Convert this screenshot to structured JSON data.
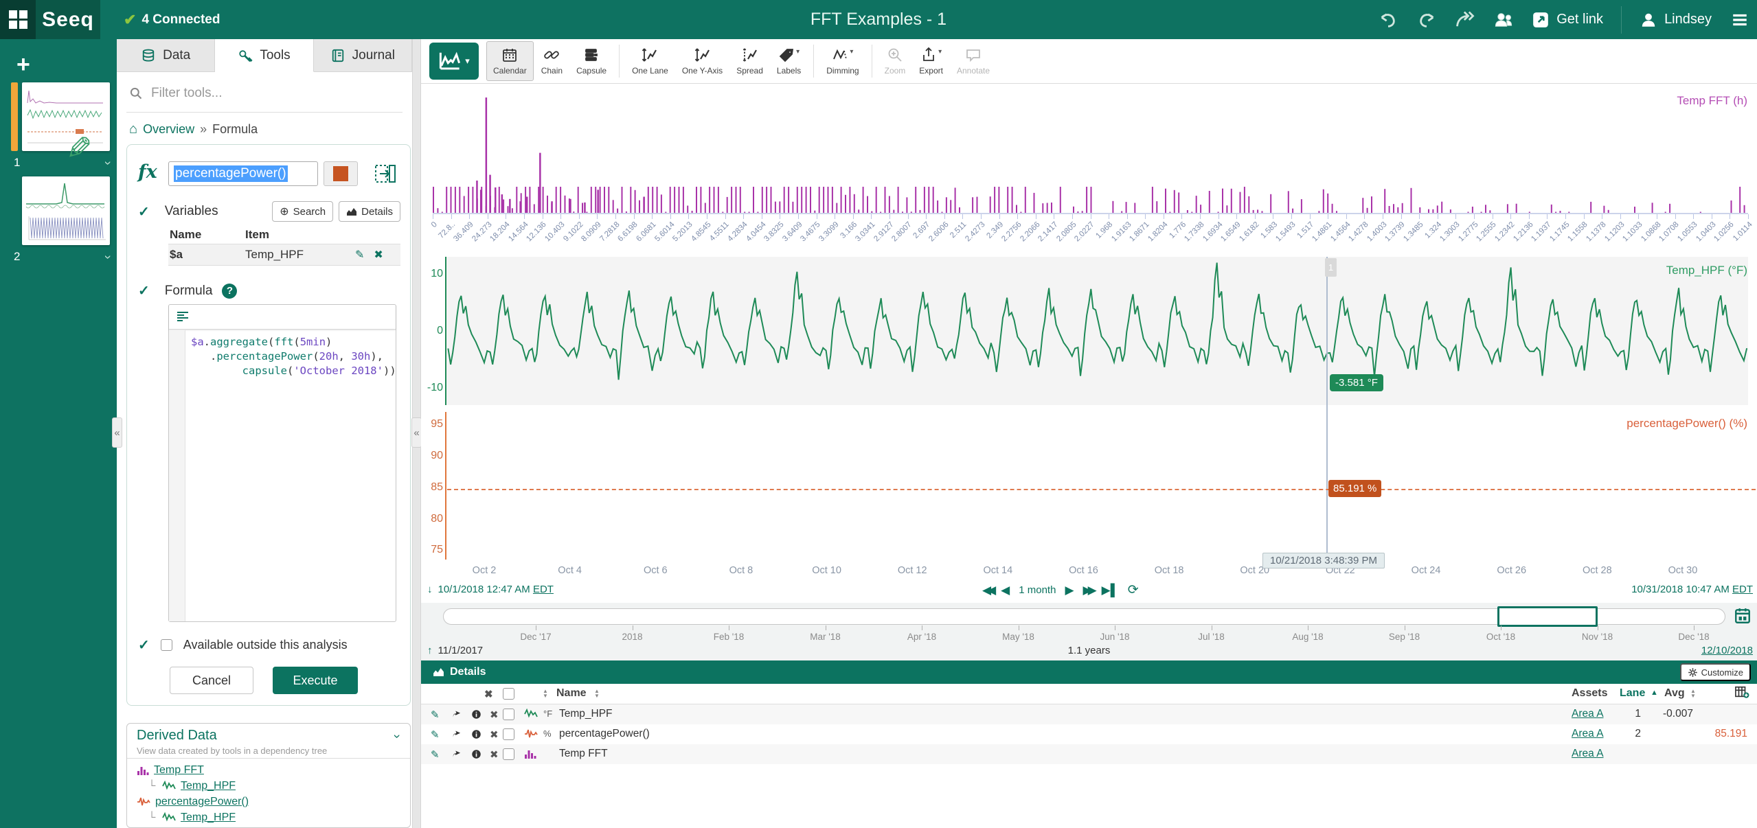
{
  "top_bar": {
    "logo": "Seeq",
    "connected": "4 Connected",
    "title": "FFT Examples - 1",
    "get_link": "Get link",
    "user_name": "Lindsey"
  },
  "worksheets": {
    "add_label": "+",
    "items": [
      {
        "label": "1"
      },
      {
        "label": "2"
      }
    ]
  },
  "panel_tabs": [
    {
      "label": "Data",
      "icon": "database-icon",
      "active": false
    },
    {
      "label": "Tools",
      "icon": "wrench-icon",
      "active": true
    },
    {
      "label": "Journal",
      "icon": "journal-icon",
      "active": false
    }
  ],
  "tools_panel": {
    "filter_placeholder": "Filter tools...",
    "breadcrumb": {
      "root": "Overview",
      "separator": "»",
      "current": "Formula"
    },
    "formula_tool": {
      "name_value": "percentagePower()",
      "variables_label": "Variables",
      "search_button": "Search",
      "details_button": "Details",
      "columns": [
        "Name",
        "Item"
      ],
      "variables": [
        {
          "name": "$a",
          "item": "Temp_HPF"
        }
      ],
      "formula_label": "Formula",
      "code_lines": [
        [
          [
            "$a",
            "v"
          ],
          [
            ".",
            "p"
          ],
          [
            "aggregate",
            "f"
          ],
          [
            "(",
            "p"
          ],
          [
            "fft",
            "f"
          ],
          [
            "(",
            "p"
          ],
          [
            "5min",
            "v"
          ],
          [
            ")",
            "p"
          ]
        ],
        [
          [
            "   .",
            "p"
          ],
          [
            "percentagePower",
            "f"
          ],
          [
            "(",
            "p"
          ],
          [
            "20h",
            "v"
          ],
          [
            ", ",
            "p"
          ],
          [
            "30h",
            "v"
          ],
          [
            "),",
            "p"
          ]
        ],
        [
          [
            "        ",
            "p"
          ],
          [
            "capsule",
            "f"
          ],
          [
            "(",
            "p"
          ],
          [
            "'October 2018'",
            "s"
          ],
          [
            "))",
            "p"
          ]
        ]
      ],
      "available_label": "Available outside this analysis",
      "cancel_button": "Cancel",
      "execute_button": "Execute"
    },
    "derived_data": {
      "title": "Derived Data",
      "subtitle": "View data created by tools in a dependency tree",
      "tree": [
        {
          "icon": "bars-purple-icon",
          "label": "Temp FFT",
          "depth": 0
        },
        {
          "icon": "wave-green-icon",
          "label": "Temp_HPF",
          "depth": 1
        },
        {
          "icon": "wave-orange-icon",
          "label": "percentagePower()",
          "depth": 0
        },
        {
          "icon": "wave-green-icon",
          "label": "Temp_HPF",
          "depth": 1
        }
      ]
    }
  },
  "toolbar": {
    "buttons": [
      {
        "label": "Calendar",
        "icon": "calendar-icon",
        "active": true
      },
      {
        "label": "Chain",
        "icon": "chain-icon"
      },
      {
        "label": "Capsule",
        "icon": "capsule-icon"
      },
      {
        "divider": true
      },
      {
        "label": "One Lane",
        "icon": "one-lane-icon"
      },
      {
        "label": "One Y-Axis",
        "icon": "one-y-axis-icon"
      },
      {
        "label": "Spread",
        "icon": "spread-icon"
      },
      {
        "label": "Labels",
        "icon": "labels-icon",
        "caret": true
      },
      {
        "divider": true
      },
      {
        "label": "Dimming",
        "icon": "dimming-icon",
        "caret": true
      },
      {
        "divider": true
      },
      {
        "label": "Zoom",
        "icon": "zoom-icon",
        "disabled": true
      },
      {
        "label": "Export",
        "icon": "export-icon",
        "caret": true
      },
      {
        "label": "Annotate",
        "icon": "annotate-icon",
        "disabled": true
      }
    ]
  },
  "chart_data": [
    {
      "type": "bar",
      "name": "Temp FFT",
      "legend": "Temp FFT (h)",
      "color": "#a832a8",
      "x_tick_labels": [
        "0",
        "72.8..",
        "36.409",
        "24.273",
        "18.204",
        "14.564",
        "12.136",
        "10.403",
        "9.1022",
        "8.0909",
        "7.2818",
        "6.6198",
        "6.0681",
        "5.6014",
        "5.2013",
        "4.8545",
        "4.5511",
        "4.2834",
        "4.0454",
        "3.8325",
        "3.6409",
        "3.4675",
        "3.3099",
        "3.166",
        "3.0341",
        "2.9127",
        "2.8007",
        "2.697",
        "2.6006",
        "2.511",
        "2.4273",
        "2.349",
        "2.2756",
        "2.2066",
        "2.1417",
        "2.0805",
        "2.0227",
        "1.968",
        "1.9163",
        "1.8671",
        "1.8204",
        "1.776",
        "1.7338",
        "1.6934",
        "1.6549",
        "1.6182",
        "1.583",
        "1.5493",
        "1.517",
        "1.4861",
        "1.4564",
        "1.4278",
        "1.4003",
        "1.3739",
        "1.3485",
        "1.324",
        "1.3003",
        "1.2775",
        "1.2555",
        "1.2342",
        "1.2136",
        "1.1937",
        "1.1745",
        "1.1558",
        "1.1378",
        "1.1203",
        "1.1033",
        "1.0868",
        "1.0708",
        "1.0553",
        "1.0403",
        "1.0256",
        "1.0114"
      ],
      "spikes": [
        [
          0.04,
          1.0
        ],
        [
          0.081,
          0.52
        ],
        [
          0.125,
          0.2
        ],
        [
          0.16,
          0.14
        ],
        [
          0.033,
          0.28
        ],
        [
          0.036,
          0.2
        ],
        [
          0.043,
          0.33
        ],
        [
          0.047,
          0.22
        ],
        [
          0.052,
          0.16
        ],
        [
          0.058,
          0.12
        ],
        [
          0.066,
          0.1
        ],
        [
          0.071,
          0.14
        ],
        [
          0.09,
          0.1
        ],
        [
          0.104,
          0.12
        ],
        [
          0.115,
          0.09
        ]
      ],
      "noise": {
        "bars": 300,
        "seed": 5,
        "base": 0.085
      }
    },
    {
      "type": "line",
      "name": "Temp_HPF",
      "legend": "Temp_HPF (°F)",
      "color": "#1e8a57",
      "unit": "°F",
      "y_ticks": [
        10,
        0,
        -10
      ],
      "y_range": [
        -13,
        13
      ],
      "days": 31,
      "peak": 6.2,
      "trough": -6.3,
      "spike_days": [
        8,
        18,
        25
      ],
      "spike_peak": 11.8,
      "seed": 11,
      "avg": -0.007
    },
    {
      "type": "line",
      "name": "percentagePower()",
      "legend": "percentagePower() (%)",
      "color": "#df7a4e",
      "unit": "%",
      "style": "dashed-constant",
      "value": 85.191,
      "y_ticks": [
        95,
        90,
        85,
        80,
        75
      ],
      "y_range": [
        73.5,
        97
      ]
    }
  ],
  "x_axis": {
    "labels": [
      "Oct 2",
      "Oct 4",
      "Oct 6",
      "Oct 8",
      "Oct 10",
      "Oct 12",
      "Oct 14",
      "Oct 16",
      "Oct 18",
      "Oct 20",
      "Oct 22",
      "Oct 24",
      "Oct 26",
      "Oct 28",
      "Oct 30"
    ]
  },
  "cursor": {
    "lane_badge": "1",
    "hpf_value": "-3.581 °F",
    "power_value": "85.191 %",
    "time": "10/21/2018 3:48:39 PM"
  },
  "range": {
    "start": "10/1/2018 12:47 AM",
    "start_tz": "EDT",
    "end": "10/31/2018 10:47 AM",
    "end_tz": "EDT",
    "duration": "1 month"
  },
  "timeline": {
    "months": [
      "Dec '17",
      "2018",
      "Feb '18",
      "Mar '18",
      "Apr '18",
      "May '18",
      "Jun '18",
      "Jul '18",
      "Aug '18",
      "Sep '18",
      "Oct '18",
      "Nov '18",
      "Dec '18"
    ],
    "start": "11/1/2017",
    "span": "1.1 years",
    "end": "12/10/2018"
  },
  "details": {
    "title": "Details",
    "customize_button": "Customize",
    "columns": {
      "name": "Name",
      "assets": "Assets",
      "lane": "Lane",
      "avg": "Avg"
    },
    "rows": [
      {
        "icon": "wave-green-icon",
        "unit": "°F",
        "name": "Temp_HPF",
        "assets": "Area A",
        "lane": "1",
        "avg": "-0.007",
        "avg_orange": false
      },
      {
        "icon": "wave-orange-icon",
        "unit": "%",
        "name": "percentagePower()",
        "assets": "Area A",
        "lane": "2",
        "avg": "85.191",
        "avg_orange": true
      },
      {
        "icon": "bars-purple-icon",
        "unit": "",
        "name": "Temp FFT",
        "assets": "Area A",
        "lane": "",
        "avg": "",
        "avg_orange": false
      }
    ]
  }
}
